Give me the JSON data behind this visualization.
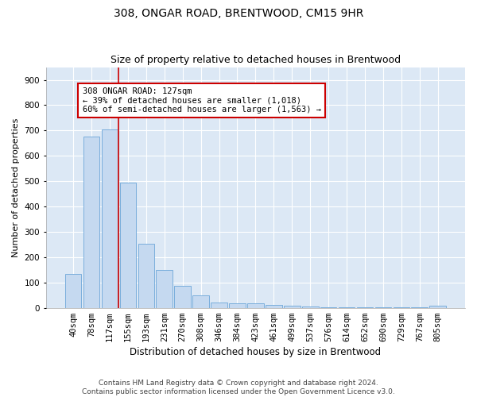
{
  "title1": "308, ONGAR ROAD, BRENTWOOD, CM15 9HR",
  "title2": "Size of property relative to detached houses in Brentwood",
  "xlabel": "Distribution of detached houses by size in Brentwood",
  "ylabel": "Number of detached properties",
  "bar_color": "#c5d9f0",
  "bar_edge_color": "#7aaedc",
  "background_color": "#dce8f5",
  "grid_color": "#ffffff",
  "categories": [
    "40sqm",
    "78sqm",
    "117sqm",
    "155sqm",
    "193sqm",
    "231sqm",
    "270sqm",
    "308sqm",
    "346sqm",
    "384sqm",
    "423sqm",
    "461sqm",
    "499sqm",
    "537sqm",
    "576sqm",
    "614sqm",
    "652sqm",
    "690sqm",
    "729sqm",
    "767sqm",
    "805sqm"
  ],
  "values": [
    135,
    675,
    705,
    493,
    253,
    150,
    88,
    50,
    22,
    18,
    18,
    11,
    10,
    5,
    3,
    2,
    1,
    1,
    1,
    1,
    10
  ],
  "vline_color": "#cc0000",
  "annotation_text": "308 ONGAR ROAD: 127sqm\n← 39% of detached houses are smaller (1,018)\n60% of semi-detached houses are larger (1,563) →",
  "annotation_box_color": "#ffffff",
  "annotation_box_edge": "#cc0000",
  "ylim": [
    0,
    950
  ],
  "yticks": [
    0,
    100,
    200,
    300,
    400,
    500,
    600,
    700,
    800,
    900
  ],
  "footer": "Contains HM Land Registry data © Crown copyright and database right 2024.\nContains public sector information licensed under the Open Government Licence v3.0.",
  "title1_fontsize": 10,
  "title2_fontsize": 9,
  "xlabel_fontsize": 8.5,
  "ylabel_fontsize": 8,
  "tick_fontsize": 7.5,
  "annotation_fontsize": 7.5,
  "footer_fontsize": 6.5
}
